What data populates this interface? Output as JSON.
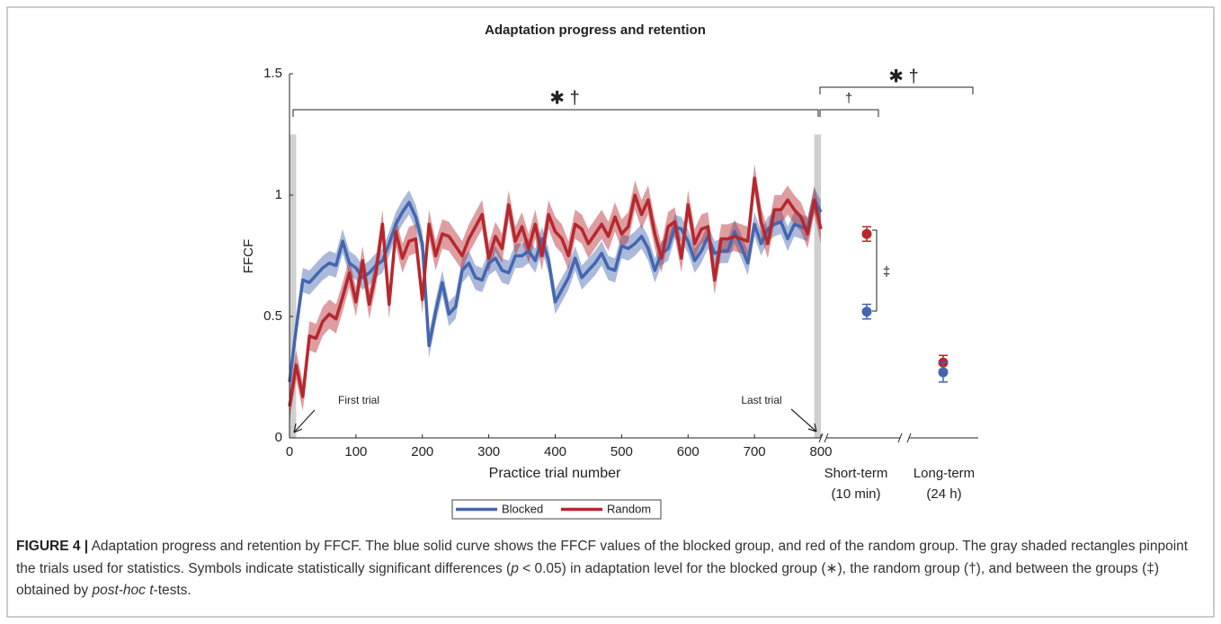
{
  "chart_data": {
    "type": "line",
    "title": "Adaptation progress and retention",
    "xlabel": "Practice trial number",
    "ylabel": "FFCF",
    "xlim": [
      0,
      800
    ],
    "xticks": [
      0,
      100,
      200,
      300,
      400,
      500,
      600,
      700,
      800
    ],
    "ylim": [
      0,
      1.5
    ],
    "yticks": [
      0,
      {
        "value": 0.5,
        "label": "0.5"
      },
      1,
      {
        "value": 1.5,
        "label": "1.5"
      }
    ],
    "x": [
      0,
      10,
      20,
      30,
      40,
      50,
      60,
      70,
      80,
      90,
      100,
      110,
      120,
      130,
      140,
      150,
      160,
      170,
      180,
      190,
      200,
      210,
      220,
      230,
      240,
      250,
      260,
      270,
      280,
      290,
      300,
      310,
      320,
      330,
      340,
      350,
      360,
      370,
      380,
      390,
      400,
      410,
      420,
      430,
      440,
      450,
      460,
      470,
      480,
      490,
      500,
      510,
      520,
      530,
      540,
      550,
      560,
      570,
      580,
      590,
      600,
      610,
      620,
      630,
      640,
      650,
      660,
      670,
      680,
      690,
      700,
      710,
      720,
      730,
      740,
      750,
      760,
      770,
      780,
      790,
      800
    ],
    "series": [
      {
        "name": "Blocked",
        "color": "#4466b0",
        "error": 0.05,
        "values": [
          0.23,
          0.45,
          0.65,
          0.64,
          0.67,
          0.7,
          0.72,
          0.71,
          0.81,
          0.72,
          0.7,
          0.66,
          0.68,
          0.71,
          0.73,
          0.8,
          0.88,
          0.93,
          0.97,
          0.91,
          0.8,
          0.38,
          0.52,
          0.64,
          0.51,
          0.54,
          0.69,
          0.72,
          0.66,
          0.65,
          0.72,
          0.74,
          0.69,
          0.68,
          0.75,
          0.75,
          0.77,
          0.73,
          0.82,
          0.73,
          0.56,
          0.61,
          0.66,
          0.74,
          0.66,
          0.69,
          0.72,
          0.76,
          0.7,
          0.69,
          0.79,
          0.78,
          0.8,
          0.83,
          0.78,
          0.69,
          0.76,
          0.78,
          0.87,
          0.86,
          0.81,
          0.73,
          0.77,
          0.83,
          0.76,
          0.77,
          0.77,
          0.85,
          0.79,
          0.72,
          0.88,
          0.8,
          0.86,
          0.88,
          0.89,
          0.82,
          0.88,
          0.87,
          0.86,
          0.98,
          0.93
        ]
      },
      {
        "name": "Random",
        "color": "#b5282e",
        "error": 0.06,
        "values": [
          0.13,
          0.3,
          0.17,
          0.42,
          0.41,
          0.48,
          0.51,
          0.49,
          0.58,
          0.68,
          0.56,
          0.73,
          0.55,
          0.68,
          0.88,
          0.55,
          0.85,
          0.74,
          0.81,
          0.82,
          0.57,
          0.88,
          0.75,
          0.84,
          0.83,
          0.79,
          0.75,
          0.82,
          0.87,
          0.92,
          0.74,
          0.83,
          0.78,
          0.96,
          0.81,
          0.87,
          0.78,
          0.88,
          0.75,
          0.92,
          0.85,
          0.82,
          0.75,
          0.88,
          0.86,
          0.8,
          0.84,
          0.88,
          0.83,
          0.91,
          0.84,
          0.87,
          1.0,
          0.92,
          0.98,
          0.84,
          0.74,
          0.87,
          0.89,
          0.74,
          0.96,
          0.8,
          0.86,
          0.87,
          0.65,
          0.82,
          0.82,
          0.83,
          0.82,
          0.81,
          1.07,
          0.89,
          0.8,
          0.94,
          0.94,
          0.98,
          0.94,
          0.91,
          0.84,
          0.98,
          0.86
        ]
      }
    ],
    "shaded_ranges": [
      [
        0,
        10
      ],
      [
        790,
        800
      ]
    ],
    "shaded_top": 1.25,
    "retention": {
      "categories": [
        "Short-term",
        "Long-term"
      ],
      "sublabels": [
        "(10 min)",
        "(24 h)"
      ],
      "blocked": [
        0.52,
        0.27
      ],
      "blocked_error": [
        0.03,
        0.04
      ],
      "random": [
        0.84,
        0.31
      ],
      "random_error": [
        0.03,
        0.03
      ]
    },
    "annotations": {
      "practice": "✱ †",
      "short_term": "†",
      "long_term": "✱ †",
      "between": "‡",
      "first_trial": "First trial",
      "last_trial": "Last trial"
    },
    "caption_label": "FIGURE 4 |",
    "caption_parts": [
      " Adaptation progress and retention by FFCF. The blue solid curve shows the FFCF values of the blocked group, and red of the random group. The gray shaded rectangles pinpoint the trials used for statistics. Symbols indicate statistically significant differences (",
      "p",
      " < 0.05) in adaptation level for the blocked group (∗), the random group (†), and between the groups (‡) obtained by ",
      "post-hoc t",
      "-tests."
    ]
  }
}
